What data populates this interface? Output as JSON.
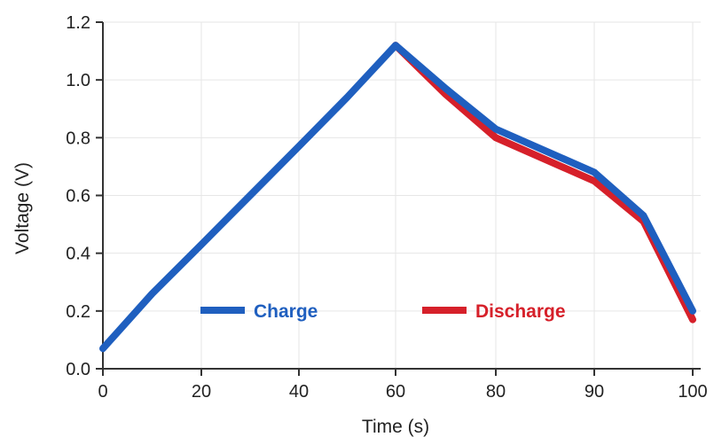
{
  "chart_data": {
    "type": "line",
    "title": "",
    "xlabel": "Time (s)",
    "ylabel": "Voltage (V)",
    "x_ticks": [
      "0",
      "20",
      "40",
      "60",
      "80",
      "90",
      "100"
    ],
    "y_ticks": [
      "0.0",
      "0.2",
      "0.4",
      "0.6",
      "0.8",
      "1.0",
      "1.2"
    ],
    "ylim": [
      0,
      1.2
    ],
    "grid": true,
    "legend_placement": "bottom-center",
    "series": [
      {
        "name": "Charge",
        "color": "#1f5fbf",
        "points": [
          [
            0,
            0.07
          ],
          [
            10,
            0.26
          ],
          [
            20,
            0.43
          ],
          [
            30,
            0.6
          ],
          [
            40,
            0.77
          ],
          [
            50,
            0.94
          ],
          [
            60,
            1.12
          ],
          [
            70,
            0.97
          ],
          [
            80,
            0.83
          ],
          [
            90,
            0.68
          ],
          [
            95,
            0.53
          ],
          [
            100,
            0.2
          ]
        ]
      },
      {
        "name": "Discharge",
        "color": "#d6202a",
        "points": [
          [
            60,
            1.12
          ],
          [
            70,
            0.95
          ],
          [
            80,
            0.8
          ],
          [
            90,
            0.65
          ],
          [
            95,
            0.51
          ],
          [
            100,
            0.17
          ]
        ]
      }
    ]
  }
}
